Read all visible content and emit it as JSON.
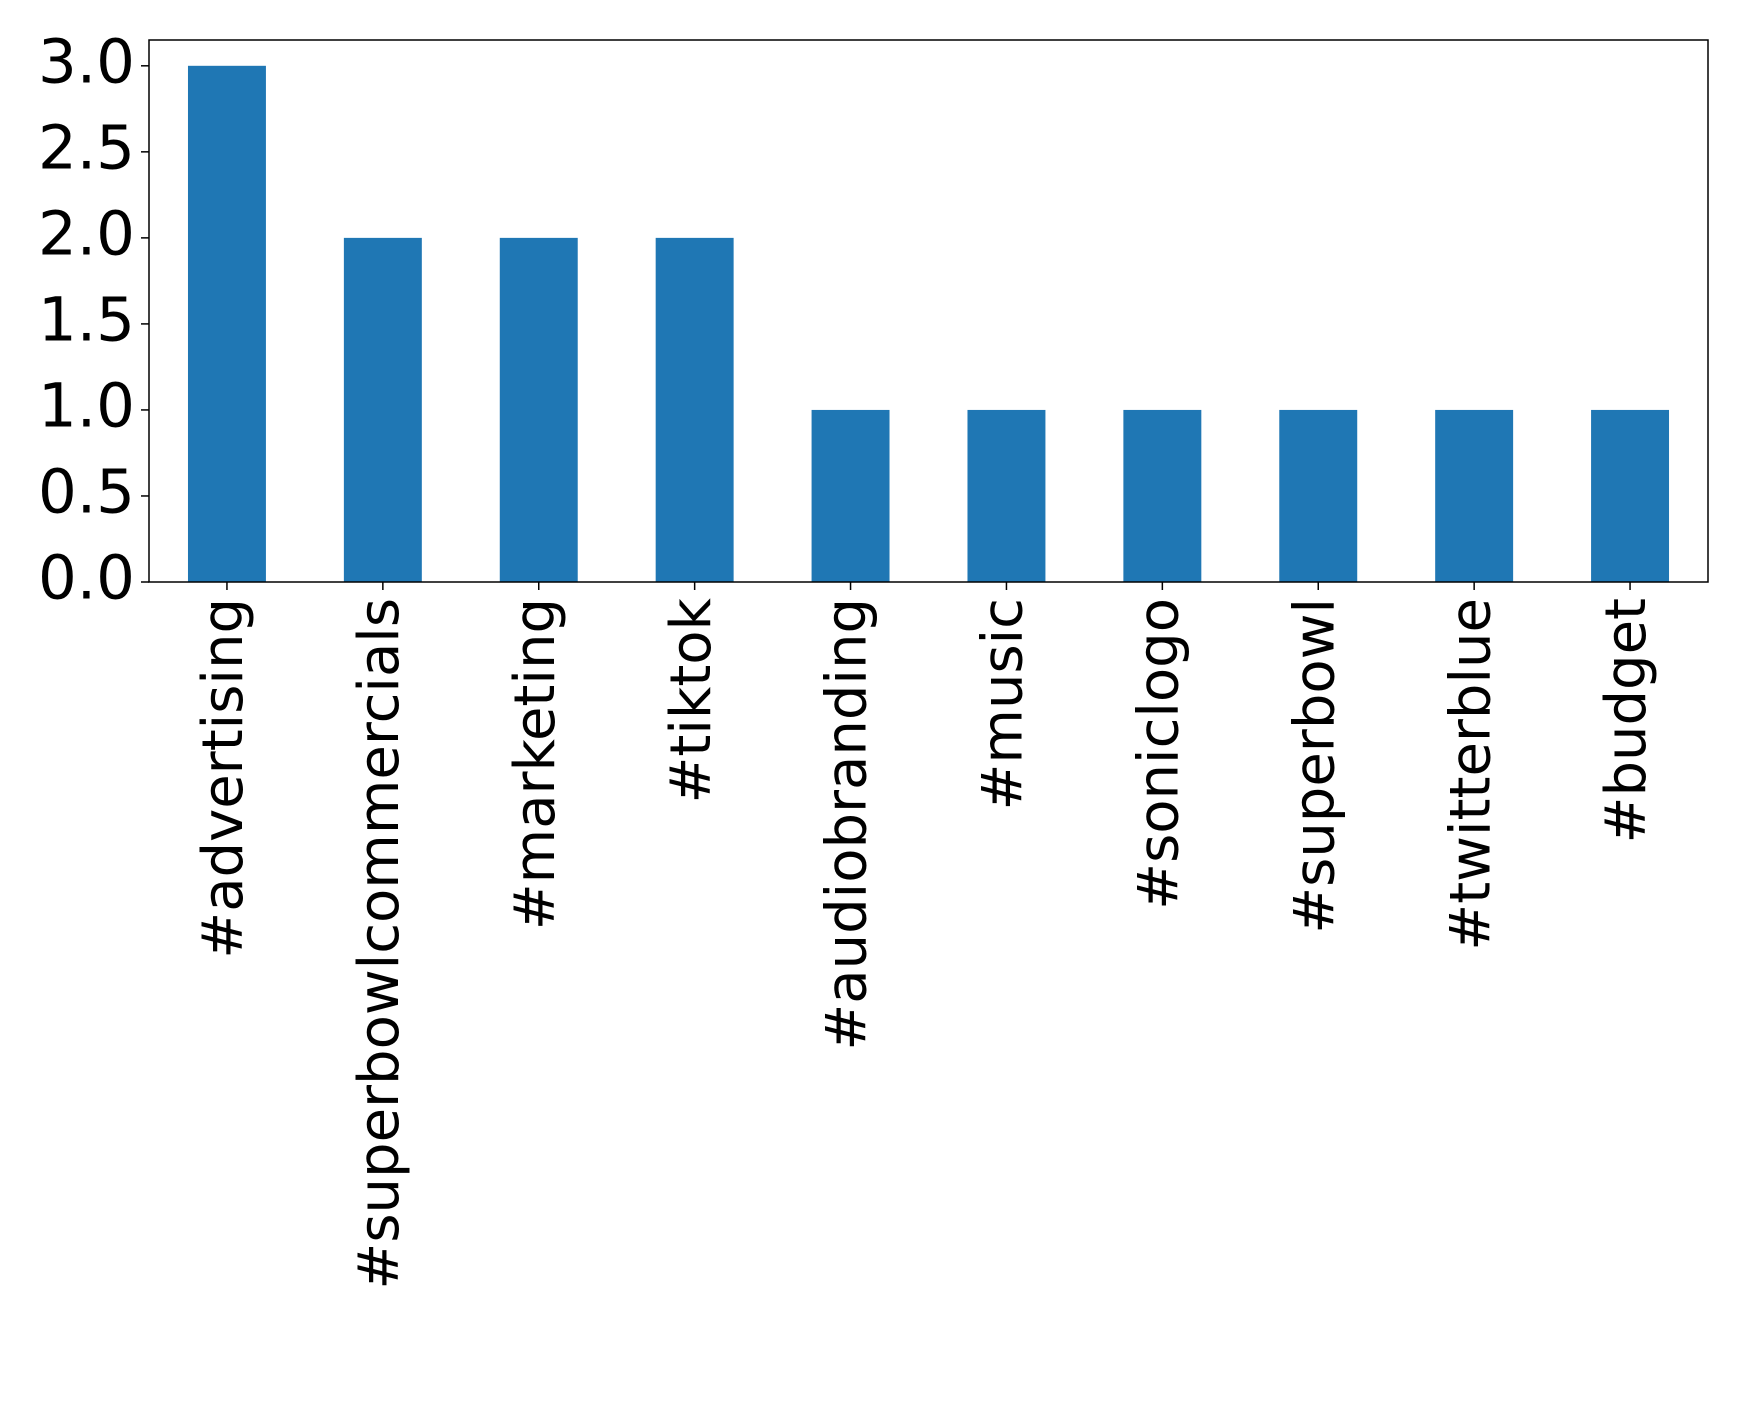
{
  "chart_data": {
    "type": "bar",
    "categories": [
      "#advertising",
      "#superbowlcommercials",
      "#marketing",
      "#tiktok",
      "#audiobranding",
      "#music",
      "#soniclogo",
      "#superbowl",
      "#twitterblue",
      "#budget"
    ],
    "values": [
      3,
      2,
      2,
      2,
      1,
      1,
      1,
      1,
      1,
      1
    ],
    "color": "#1f77b4",
    "ylim": [
      0,
      3.15
    ],
    "yticks": [
      {
        "value": 0,
        "label": "0.0"
      },
      0.5,
      {
        "value": 1,
        "label": "1.0"
      },
      1.5,
      {
        "value": 2,
        "label": "2.0"
      },
      2.5,
      {
        "value": 3,
        "label": "3.0"
      }
    ],
    "grid": false
  }
}
